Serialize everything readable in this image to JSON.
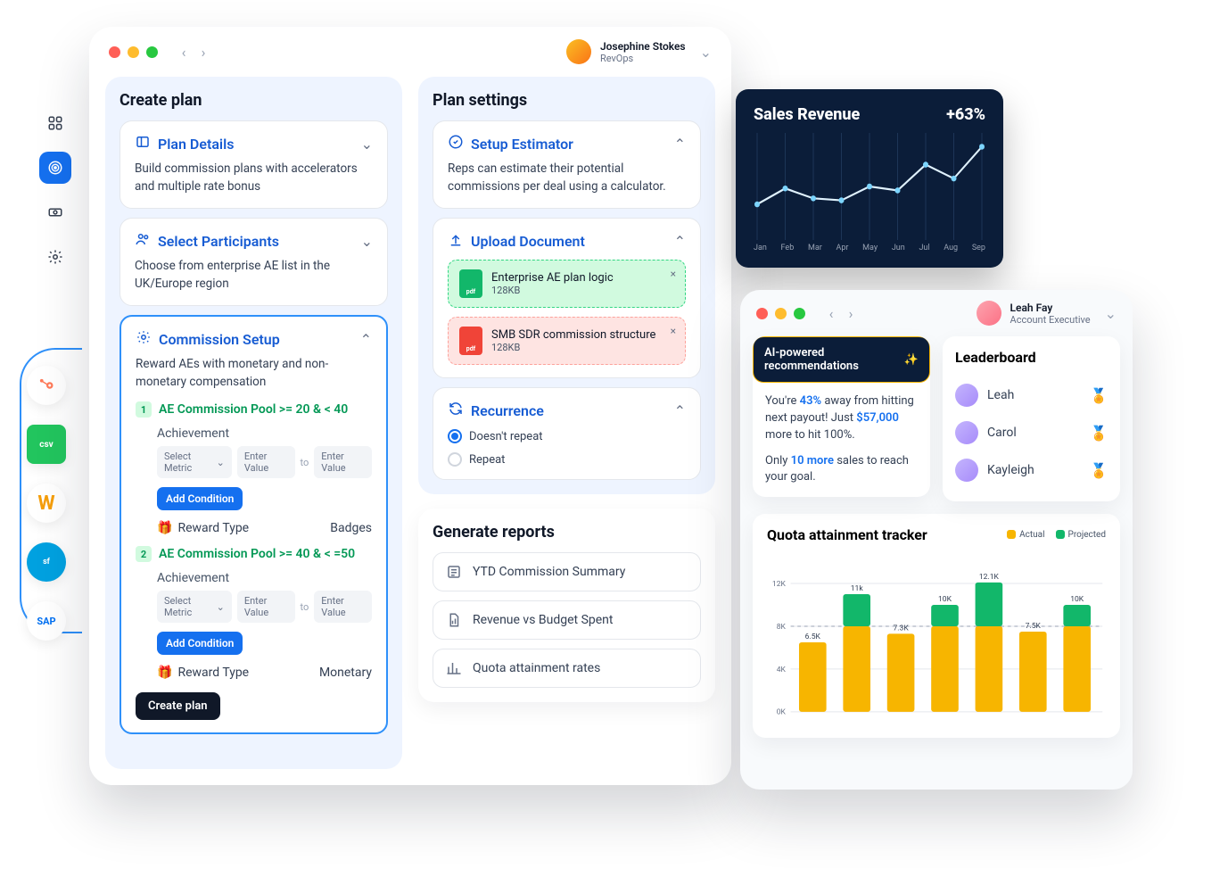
{
  "colors": {
    "primary": "#1570ef",
    "primary_dark": "#175cd3",
    "green": "#12b76a",
    "green_bg": "#d1fadf",
    "red": "#f04438",
    "red_bg": "#fee4e2",
    "panel_bg": "#eef4ff",
    "text": "#101828",
    "muted": "#667085",
    "dark_bg": "#0b1d39",
    "actual": "#f7b500",
    "projected": "#12b76a"
  },
  "leftnav": {
    "items": [
      "dashboard-icon",
      "target-icon",
      "cash-icon",
      "gear-icon"
    ],
    "active_index": 1
  },
  "integrations": {
    "items": [
      {
        "label": "HubSpot",
        "color": "#ff7a59",
        "abbr": "H"
      },
      {
        "label": "CSV",
        "color": "#22c55e",
        "abbr": "csv"
      },
      {
        "label": "Workday",
        "color": "#f59e0b",
        "abbr": "W"
      },
      {
        "label": "Salesforce",
        "color": "#00a1e0",
        "abbr": "sf"
      },
      {
        "label": "SAP",
        "color": "#0070f2",
        "abbr": "SAP"
      }
    ]
  },
  "revops": {
    "user": {
      "name": "Josephine Stokes",
      "role": "RevOps"
    },
    "create_plan": {
      "title": "Create plan",
      "plan_details": {
        "title": "Plan Details",
        "sub": "Build commission plans with accelerators and multiple rate bonus"
      },
      "select_participants": {
        "title": "Select Participants",
        "sub": "Choose from enterprise AE list in the UK/Europe region"
      },
      "commission_setup": {
        "title": "Commission Setup",
        "sub": "Reward AEs with monetary and non-monetary compensation",
        "pools": [
          {
            "num": "1",
            "label": "AE Commission Pool >= 20 & < 40",
            "achievement_label": "Achievement",
            "select_metric": "Select Metric",
            "enter_value": "Enter Value",
            "to": "to",
            "add_condition": "Add Condition",
            "reward_label": "Reward Type",
            "reward_value": "Badges"
          },
          {
            "num": "2",
            "label": "AE Commission Pool >= 40 & < =50",
            "achievement_label": "Achievement",
            "select_metric": "Select Metric",
            "enter_value": "Enter Value",
            "to": "to",
            "add_condition": "Add Condition",
            "reward_label": "Reward Type",
            "reward_value": "Monetary"
          }
        ],
        "create_button": "Create plan"
      }
    },
    "plan_settings": {
      "title": "Plan settings",
      "setup_estimator": {
        "title": "Setup Estimator",
        "sub": "Reps can estimate their potential commissions per deal using a calculator."
      },
      "upload_document": {
        "title": "Upload Document",
        "files": [
          {
            "name": "Enterprise AE plan logic",
            "size": "128KB",
            "status": "green",
            "type": "pdf"
          },
          {
            "name": "SMB SDR commission structure",
            "size": "128KB",
            "status": "red",
            "type": "pdf"
          }
        ]
      },
      "recurrence": {
        "title": "Recurrence",
        "options": [
          {
            "label": "Doesn't repeat",
            "selected": true
          },
          {
            "label": "Repeat",
            "selected": false
          }
        ]
      }
    },
    "generate_reports": {
      "title": "Generate reports",
      "items": [
        "YTD Commission Summary",
        "Revenue vs Budget Spent",
        "Quota attainment rates"
      ]
    }
  },
  "sales_revenue": {
    "title": "Sales Revenue",
    "delta": "+63%",
    "type": "line",
    "months": [
      "Jan",
      "Feb",
      "Mar",
      "Apr",
      "May",
      "Jun",
      "Jul",
      "Aug",
      "Sep"
    ],
    "values": [
      32,
      48,
      38,
      36,
      50,
      46,
      72,
      58,
      90
    ],
    "line_color": "#e0f2fe",
    "point_color": "#7cd4fd",
    "grid_color": "#1d3557",
    "background_color": "#0b1d39",
    "ylim": [
      0,
      100
    ]
  },
  "ae": {
    "user": {
      "name": "Leah Fay",
      "role": "Account Executive"
    },
    "ai": {
      "pill": "AI-powered recommendations",
      "line1_pre": "You're ",
      "line1_pct": "43%",
      "line1_mid": " away from hitting next payout! Just ",
      "line1_amt": "$57,000",
      "line1_post": " more to hit 100%.",
      "line2_pre": "Only ",
      "line2_n": "10 more",
      "line2_post": " sales to reach your goal."
    },
    "leaderboard": {
      "title": "Leaderboard",
      "rows": [
        {
          "name": "Leah",
          "medal_color": "#f7b500"
        },
        {
          "name": "Carol",
          "medal_color": "#9ca3af"
        },
        {
          "name": "Kayleigh",
          "medal_color": "#f04438"
        }
      ]
    },
    "quota": {
      "title": "Quota attainment tracker",
      "legend": {
        "actual": "Actual",
        "projected": "Projected"
      },
      "type": "bar",
      "ylim": [
        0,
        13
      ],
      "ytick_step": 4,
      "yticks": [
        "0K",
        "4K",
        "8K",
        "12K"
      ],
      "dashed_line_at": 8,
      "bars": [
        {
          "actual": 6.5,
          "projected": 6.5,
          "label": "6.5K"
        },
        {
          "actual": 8.0,
          "projected": 11.0,
          "label": "11k"
        },
        {
          "actual": 7.3,
          "projected": 7.3,
          "label": "7.3K"
        },
        {
          "actual": 8.0,
          "projected": 10.0,
          "label": "10K"
        },
        {
          "actual": 8.0,
          "projected": 12.1,
          "label": "12.1K"
        },
        {
          "actual": 7.5,
          "projected": 7.5,
          "label": "7.5K"
        },
        {
          "actual": 8.0,
          "projected": 10.0,
          "label": "10K"
        }
      ],
      "actual_color": "#f7b500",
      "projected_color": "#12b76a",
      "grid_color": "#e4e7ec",
      "background_color": "#ffffff",
      "bar_width": 0.62
    }
  }
}
